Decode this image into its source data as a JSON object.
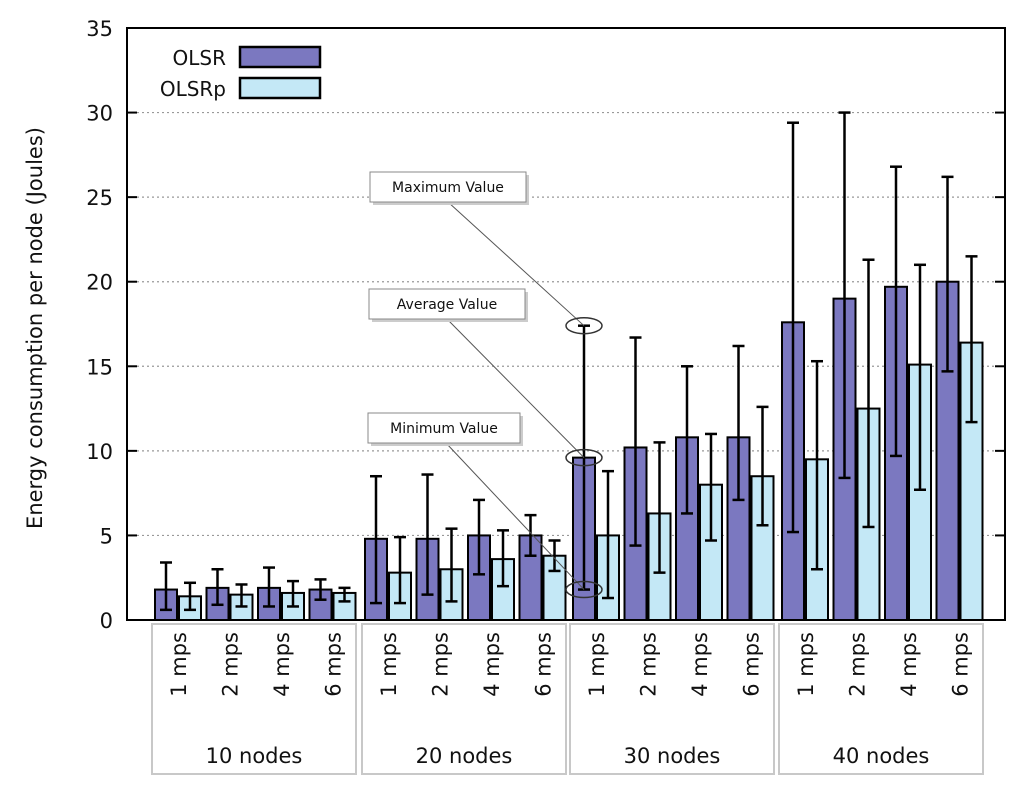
{
  "chart_data": {
    "type": "bar",
    "ylabel": "Energy consumption per node (Joules)",
    "ylim": [
      0,
      35
    ],
    "yticks": [
      0,
      5,
      10,
      15,
      20,
      25,
      30,
      35
    ],
    "grid": "horizontal-dotted",
    "legend_position": "top-left",
    "groups": [
      {
        "label": "10 nodes",
        "categories": [
          "1 mps",
          "2 mps",
          "4 mps",
          "6 mps"
        ]
      },
      {
        "label": "20 nodes",
        "categories": [
          "1 mps",
          "2 mps",
          "4 mps",
          "6 mps"
        ]
      },
      {
        "label": "30 nodes",
        "categories": [
          "1 mps",
          "2 mps",
          "4 mps",
          "6 mps"
        ]
      },
      {
        "label": "40 nodes",
        "categories": [
          "1 mps",
          "2 mps",
          "4 mps",
          "6 mps"
        ]
      }
    ],
    "series": [
      {
        "name": "OLSR",
        "color": "#7b78c0",
        "values": [
          1.8,
          1.9,
          1.9,
          1.8,
          4.8,
          4.8,
          5.0,
          5.0,
          9.6,
          10.2,
          10.8,
          10.8,
          17.6,
          19.0,
          19.7,
          20.0
        ],
        "min": [
          0.6,
          0.9,
          0.8,
          1.2,
          1.0,
          1.5,
          2.7,
          3.8,
          1.8,
          4.4,
          6.3,
          7.1,
          5.2,
          8.4,
          9.7,
          14.7
        ],
        "max": [
          3.4,
          3.0,
          3.1,
          2.4,
          8.5,
          8.6,
          7.1,
          6.2,
          17.4,
          16.7,
          15.0,
          16.2,
          29.4,
          30.0,
          26.8,
          26.2
        ]
      },
      {
        "name": "OLSRp",
        "color": "#c4e8f6",
        "values": [
          1.4,
          1.5,
          1.6,
          1.6,
          2.8,
          3.0,
          3.6,
          3.8,
          5.0,
          6.3,
          8.0,
          8.5,
          9.5,
          12.5,
          15.1,
          16.4
        ],
        "min": [
          0.6,
          0.8,
          0.8,
          1.1,
          1.0,
          1.1,
          2.0,
          2.9,
          1.3,
          2.8,
          4.7,
          5.6,
          3.0,
          5.5,
          7.7,
          11.7
        ],
        "max": [
          2.2,
          2.1,
          2.3,
          1.9,
          4.9,
          5.4,
          5.3,
          4.7,
          8.8,
          10.5,
          11.0,
          12.6,
          15.3,
          21.3,
          21.0,
          21.5
        ]
      }
    ],
    "annotations": [
      {
        "text": "Maximum Value",
        "target_group": 2,
        "target_category": 0,
        "target_series": 0,
        "target_value": 17.4
      },
      {
        "text": "Average Value",
        "target_group": 2,
        "target_category": 0,
        "target_series": 0,
        "target_value": 9.6
      },
      {
        "text": "Minimum Value",
        "target_group": 2,
        "target_category": 0,
        "target_series": 0,
        "target_value": 1.8
      }
    ]
  }
}
